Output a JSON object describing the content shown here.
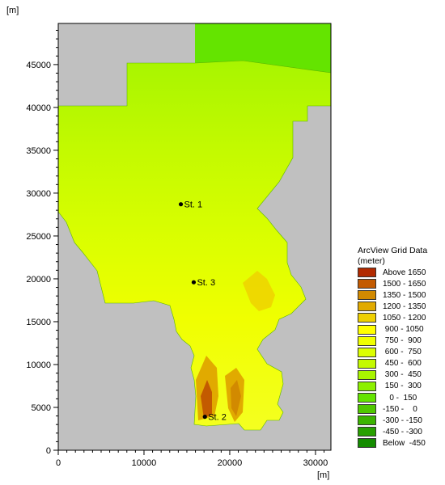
{
  "map": {
    "y_unit": "[m]",
    "x_unit": "[m]",
    "x_ticks": [
      "0",
      "10000",
      "20000",
      "30000"
    ],
    "y_ticks": [
      "0",
      "5000",
      "10000",
      "15000",
      "20000",
      "25000",
      "30000",
      "35000",
      "40000",
      "45000"
    ],
    "stations": [
      {
        "label": "St. 1",
        "x": 14300,
        "y": 28700
      },
      {
        "label": "St. 3",
        "x": 15800,
        "y": 19600
      },
      {
        "label": "St. 2",
        "x": 17100,
        "y": 3900
      }
    ],
    "background_color": "#c0c0c0"
  },
  "legend": {
    "title_line1": "ArcView Grid Data",
    "title_line2": "(meter)",
    "entries": [
      {
        "label": "Above 1650",
        "color": "#b22a00"
      },
      {
        "label": "1500 - 1650",
        "color": "#c35a00"
      },
      {
        "label": "1350 - 1500",
        "color": "#d28a00"
      },
      {
        "label": "1200 - 1350",
        "color": "#e1aa00"
      },
      {
        "label": "1050 - 1200",
        "color": "#efd000"
      },
      {
        "label": " 900 - 1050",
        "color": "#ffff00"
      },
      {
        "label": " 750 -  900",
        "color": "#f0ff00"
      },
      {
        "label": " 600 -  750",
        "color": "#dcff00"
      },
      {
        "label": " 450 -  600",
        "color": "#c4fa00"
      },
      {
        "label": " 300 -  450",
        "color": "#a8f500"
      },
      {
        "label": " 150 -  300",
        "color": "#8cf000"
      },
      {
        "label": "   0 -  150",
        "color": "#64e400"
      },
      {
        "label": "-150 -    0",
        "color": "#50c800"
      },
      {
        "label": "-300 - -150",
        "color": "#3cb400"
      },
      {
        "label": "-450 - -300",
        "color": "#28a000"
      },
      {
        "label": "Below  -450",
        "color": "#148c00"
      }
    ]
  }
}
